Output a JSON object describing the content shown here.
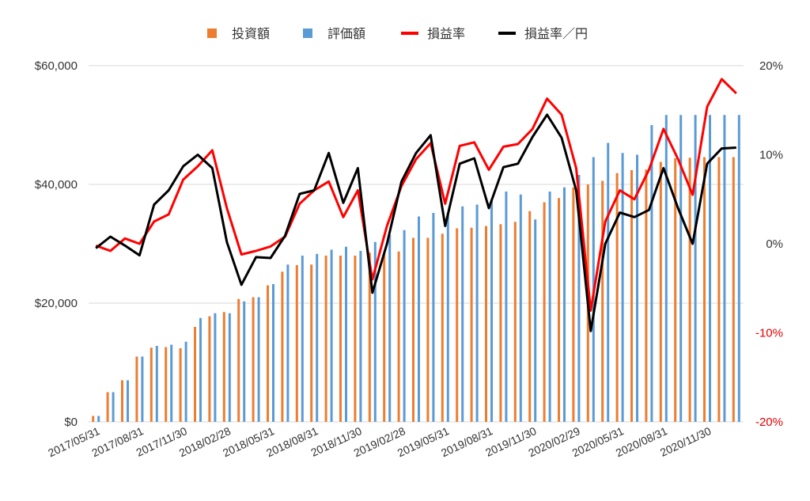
{
  "chart_data": {
    "type": "bar",
    "x": [
      "2017/05/31",
      "2017/06/30",
      "2017/07/31",
      "2017/08/31",
      "2017/09/30",
      "2017/10/31",
      "2017/11/30",
      "2017/12/31",
      "2018/01/31",
      "2018/02/28",
      "2018/03/31",
      "2018/04/30",
      "2018/05/31",
      "2018/06/30",
      "2018/07/31",
      "2018/08/31",
      "2018/09/30",
      "2018/10/31",
      "2018/11/30",
      "2018/12/31",
      "2019/01/31",
      "2019/02/28",
      "2019/03/31",
      "2019/04/30",
      "2019/05/31",
      "2019/06/30",
      "2019/07/31",
      "2019/08/31",
      "2019/09/30",
      "2019/10/31",
      "2019/11/30",
      "2019/12/31",
      "2020/01/31",
      "2020/02/29",
      "2020/03/31",
      "2020/04/30",
      "2020/05/31",
      "2020/06/30",
      "2020/07/31",
      "2020/08/31",
      "2020/09/30",
      "2020/10/31",
      "2020/11/30",
      "2020/12/31",
      "2021/01/31"
    ],
    "x_tick_labels": [
      "2017/05/31",
      "2017/08/31",
      "2017/11/30",
      "2018/02/28",
      "2018/05/31",
      "2018/08/31",
      "2018/11/30",
      "2019/02/28",
      "2019/05/31",
      "2019/08/31",
      "2019/11/30",
      "2020/02/29",
      "2020/05/31",
      "2020/08/31",
      "2020/11/30"
    ],
    "series": [
      {
        "name": "投資額",
        "type": "bar",
        "axis": "left",
        "color": "#ed7d31",
        "values": [
          1000,
          5000,
          7000,
          11000,
          12500,
          12600,
          12400,
          16000,
          17800,
          18500,
          20700,
          21000,
          23000,
          25300,
          26400,
          26500,
          28000,
          28000,
          28000,
          28500,
          28600,
          28700,
          31000,
          31000,
          31700,
          32600,
          32700,
          33000,
          33300,
          33700,
          35500,
          37000,
          37700,
          39500,
          40000,
          40600,
          41900,
          42400,
          42500,
          43800,
          44400,
          44500,
          44600,
          44600,
          44600
        ]
      },
      {
        "name": "評価額",
        "type": "bar",
        "axis": "left",
        "color": "#5b9bd5",
        "values": [
          1000,
          5000,
          7000,
          11000,
          12800,
          13000,
          13500,
          17500,
          18300,
          18300,
          20300,
          21000,
          23200,
          26500,
          28000,
          28300,
          29000,
          29500,
          28800,
          30300,
          31500,
          32300,
          34600,
          35200,
          35200,
          36300,
          36600,
          37500,
          38800,
          38300,
          34100,
          38800,
          39500,
          41600,
          44600,
          47000,
          45300,
          45000,
          50000,
          51700,
          51700,
          51700,
          51700,
          51700,
          51700
        ]
      },
      {
        "name": "損益率",
        "type": "line",
        "axis": "right",
        "color": "#ff0000",
        "values": [
          -0.2,
          -0.8,
          0.6,
          0.0,
          2.5,
          3.3,
          7.2,
          8.7,
          10.5,
          4.0,
          -1.2,
          -0.8,
          -0.3,
          0.8,
          4.5,
          6.0,
          7.0,
          3.0,
          6.0,
          -4.0,
          2.0,
          6.5,
          9.5,
          11.3,
          4.5,
          11.0,
          11.4,
          8.3,
          10.9,
          11.2,
          12.9,
          16.3,
          14.5,
          8.5,
          -7.5,
          2.5,
          6.0,
          5.0,
          8.3,
          12.9,
          9.5,
          5.5,
          15.4,
          18.5,
          16.9
        ]
      },
      {
        "name": "損益率／円",
        "type": "line",
        "axis": "right",
        "color": "#000000",
        "values": [
          -0.5,
          0.8,
          -0.2,
          -1.3,
          4.4,
          6.0,
          8.7,
          10.0,
          8.5,
          0.2,
          -4.6,
          -1.5,
          -1.6,
          0.9,
          5.6,
          6.0,
          10.2,
          4.6,
          8.5,
          -5.5,
          0.0,
          7.0,
          10.2,
          12.2,
          2.0,
          9.0,
          9.6,
          4.0,
          8.6,
          9.0,
          12.0,
          14.5,
          11.9,
          6.0,
          -9.8,
          0.0,
          3.5,
          3.0,
          3.8,
          8.5,
          4.0,
          0.0,
          9.0,
          10.7,
          10.8
        ]
      }
    ],
    "y_left": {
      "ylim": [
        0,
        60000
      ],
      "ticks": [
        "$0",
        "$20,000",
        "$40,000",
        "$60,000"
      ],
      "tick_values": [
        0,
        20000,
        40000,
        60000
      ]
    },
    "y_right": {
      "ylim": [
        -20,
        20
      ],
      "ticks": [
        "-20%",
        "-10%",
        "0%",
        "10%",
        "20%"
      ],
      "tick_values": [
        -20,
        -10,
        0,
        10,
        20
      ]
    },
    "grid": true,
    "legend_position": "top-center",
    "gridline_color": "#d9d9d9"
  }
}
